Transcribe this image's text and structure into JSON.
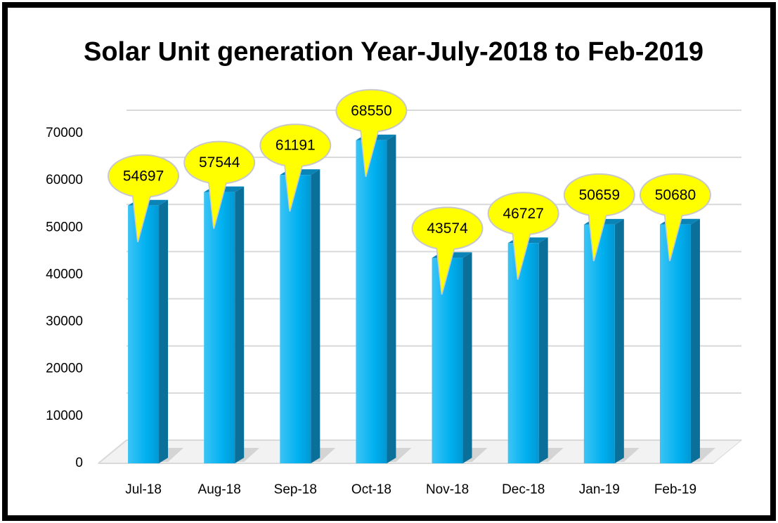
{
  "chart_data": {
    "type": "bar",
    "title": "Solar Unit generation Year-July-2018 to Feb-2019",
    "categories": [
      "Jul-18",
      "Aug-18",
      "Sep-18",
      "Oct-18",
      "Nov-18",
      "Dec-18",
      "Jan-19",
      "Feb-19"
    ],
    "values": [
      54697,
      57544,
      61191,
      68550,
      43574,
      46727,
      50659,
      50680
    ],
    "color": "#00b0f0",
    "ylim": [
      0,
      70000
    ],
    "yticks": [
      0,
      10000,
      20000,
      30000,
      40000,
      50000,
      60000,
      70000
    ],
    "grid": true
  }
}
